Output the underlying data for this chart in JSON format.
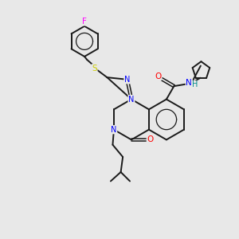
{
  "bg_color": "#e8e8e8",
  "bond_color": "#1a1a1a",
  "atom_colors": {
    "N": "#0000ff",
    "O": "#ff0000",
    "S": "#cccc00",
    "F": "#ff00ff",
    "H": "#008b8b",
    "C": "#1a1a1a"
  },
  "figsize": [
    3.0,
    3.0
  ],
  "dpi": 100
}
